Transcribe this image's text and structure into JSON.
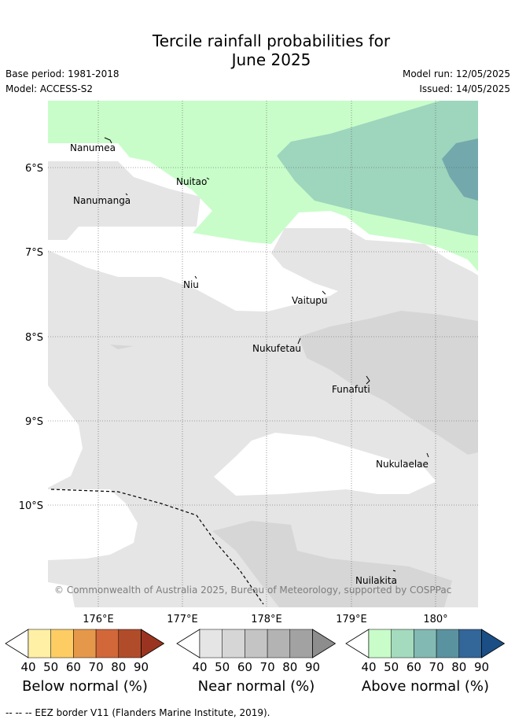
{
  "title": {
    "line1": "Tercile rainfall probabilities for",
    "line2": "June 2025"
  },
  "meta": {
    "base_period": "Base period: 1981-2018",
    "model": "Model: ACCESS-S2",
    "model_run": "Model run: 12/05/2025",
    "issued": "Issued: 14/05/2025"
  },
  "map": {
    "lat_labels": [
      "6°S",
      "7°S",
      "8°S",
      "9°S",
      "10°S"
    ],
    "lon_labels": [
      "176°E",
      "177°E",
      "178°E",
      "179°E",
      "180°"
    ],
    "islands": [
      {
        "name": "Nanumea"
      },
      {
        "name": "Nuitao"
      },
      {
        "name": "Nanumanga"
      },
      {
        "name": "Niu"
      },
      {
        "name": "Vaitupu"
      },
      {
        "name": "Nukufetau"
      },
      {
        "name": "Funafuti"
      },
      {
        "name": "Nukulaelae"
      },
      {
        "name": "Nuilakita"
      }
    ],
    "copyright": "© Commonwealth of Australia 2025, Bureau of Meteorology, supported by COSPPac",
    "colors": {
      "near_40": "#e5e5e5",
      "near_50": "#d6d6d6",
      "above_40": "#c8fdc9",
      "above_50": "#9ed5bd",
      "above_60": "#73a9ac",
      "background": "#ffffff"
    }
  },
  "colorbars": [
    {
      "label": "Below normal (%)",
      "ticks": [
        "40",
        "50",
        "60",
        "70",
        "80",
        "90"
      ],
      "colors": [
        "#ffffff",
        "#fff0a6",
        "#fdcc63",
        "#e6984a",
        "#d2673a",
        "#b14c2a",
        "#9a3420"
      ]
    },
    {
      "label": "Near normal (%)",
      "ticks": [
        "40",
        "50",
        "60",
        "70",
        "80",
        "90"
      ],
      "colors": [
        "#ffffff",
        "#e5e5e5",
        "#d6d6d6",
        "#c4c4c4",
        "#b3b3b3",
        "#a2a2a2",
        "#8d8d8d"
      ]
    },
    {
      "label": "Above normal (%)",
      "ticks": [
        "40",
        "50",
        "60",
        "70",
        "80",
        "90"
      ],
      "colors": [
        "#ffffff",
        "#c8fdc9",
        "#a4dbbe",
        "#82b9b2",
        "#5b929f",
        "#336699",
        "#1a4e84"
      ]
    }
  ],
  "footer": "-- -- -- EEZ border V11 (Flanders Marine Institute, 2019)."
}
